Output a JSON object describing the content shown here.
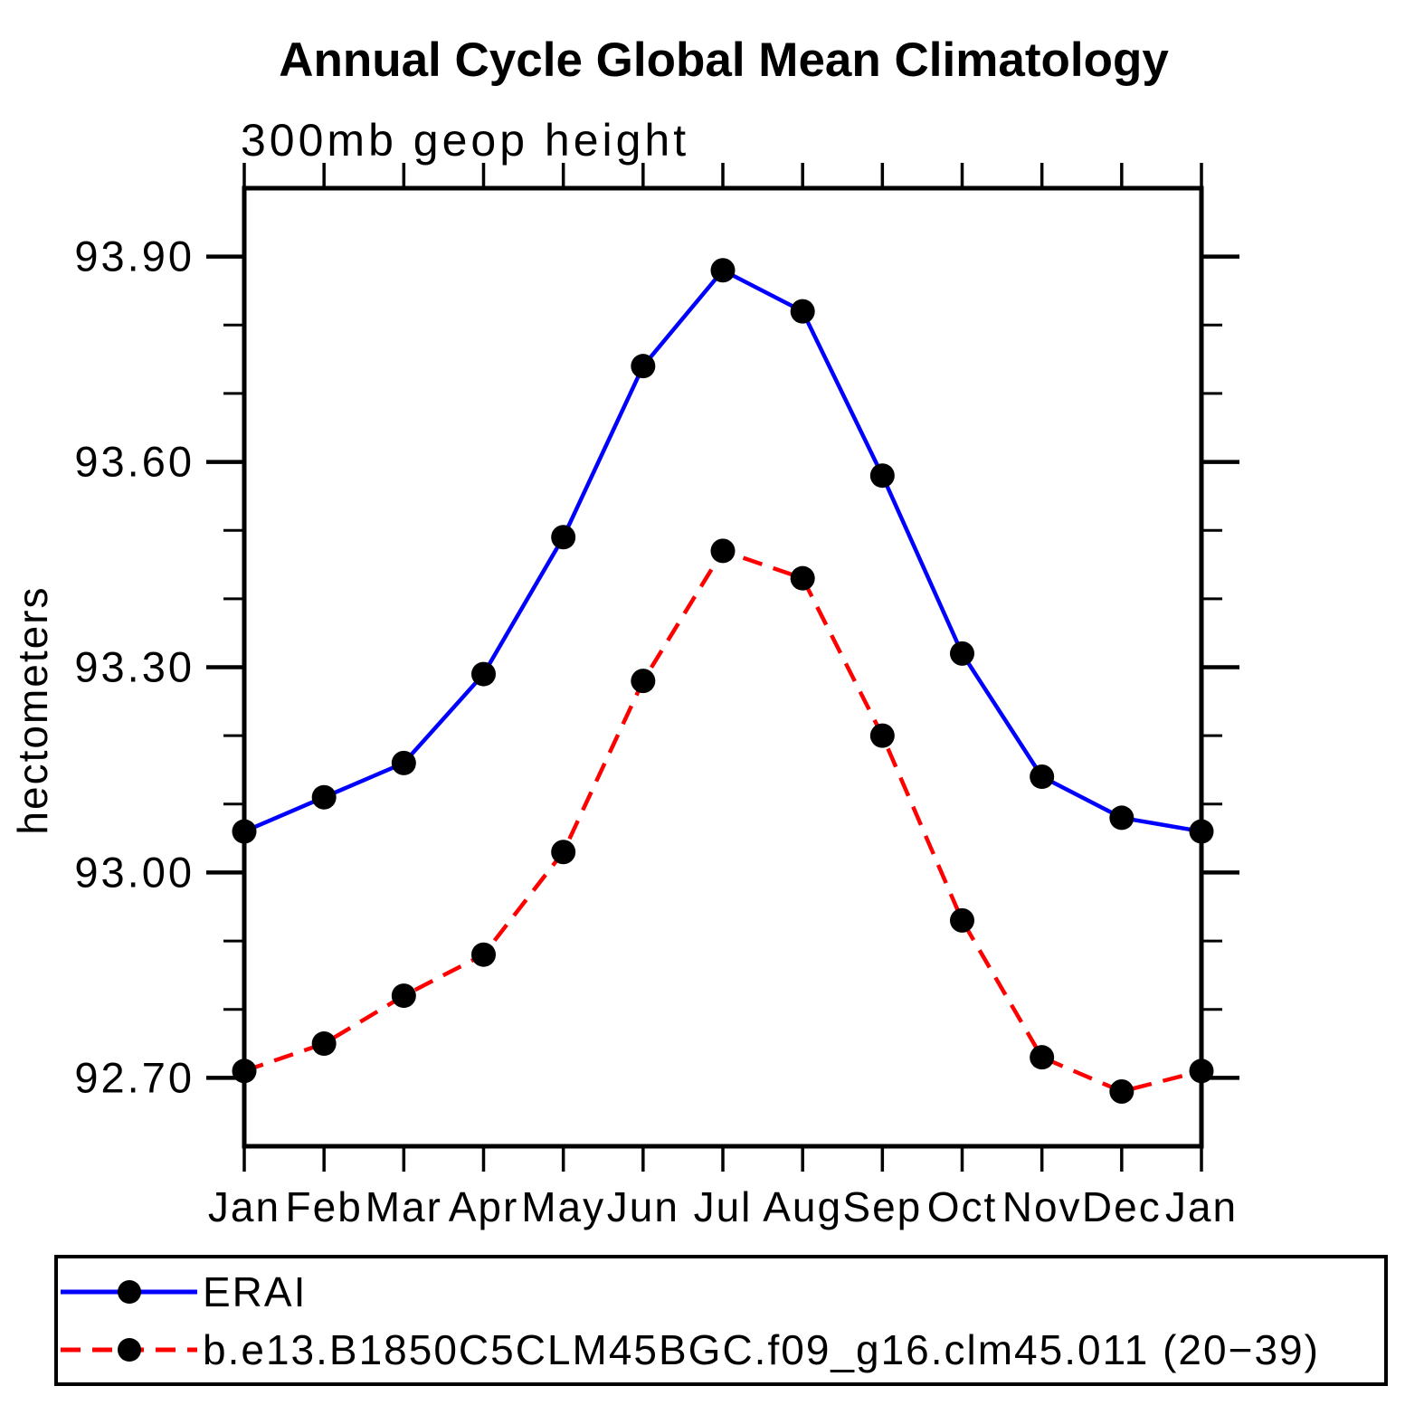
{
  "chart_data": {
    "type": "line",
    "title": "Annual Cycle Global Mean Climatology",
    "subtitle": "300mb geop height",
    "ylabel": "hectometers",
    "categories": [
      "Jan",
      "Feb",
      "Mar",
      "Apr",
      "May",
      "Jun",
      "Jul",
      "Aug",
      "Sep",
      "Oct",
      "Nov",
      "Dec",
      "Jan"
    ],
    "ylim": [
      92.6,
      94.0
    ],
    "ytick_major": [
      93.9,
      93.6,
      93.3,
      93.0,
      92.7
    ],
    "ytick_labels": [
      "93.90",
      "93.60",
      "93.30",
      "93.00",
      "92.70"
    ],
    "ytick_minor_step": 0.1,
    "grid": false,
    "legend_position": "bottom",
    "axis_color": "#000000",
    "marker_color": "#000000",
    "series": [
      {
        "name": "ERAI",
        "color": "#0000ff",
        "style": "solid",
        "values": [
          93.06,
          93.11,
          93.16,
          93.29,
          93.49,
          93.74,
          93.88,
          93.82,
          93.58,
          93.32,
          93.14,
          93.08,
          93.06
        ]
      },
      {
        "name": "b.e13.B1850C5CLM45BGC.f09_g16.clm45.011 (20−39)",
        "color": "#ff0000",
        "style": "dashed",
        "values": [
          92.71,
          92.75,
          92.82,
          92.88,
          93.03,
          93.28,
          93.47,
          93.43,
          93.2,
          92.93,
          92.73,
          92.68,
          92.71
        ]
      }
    ]
  }
}
